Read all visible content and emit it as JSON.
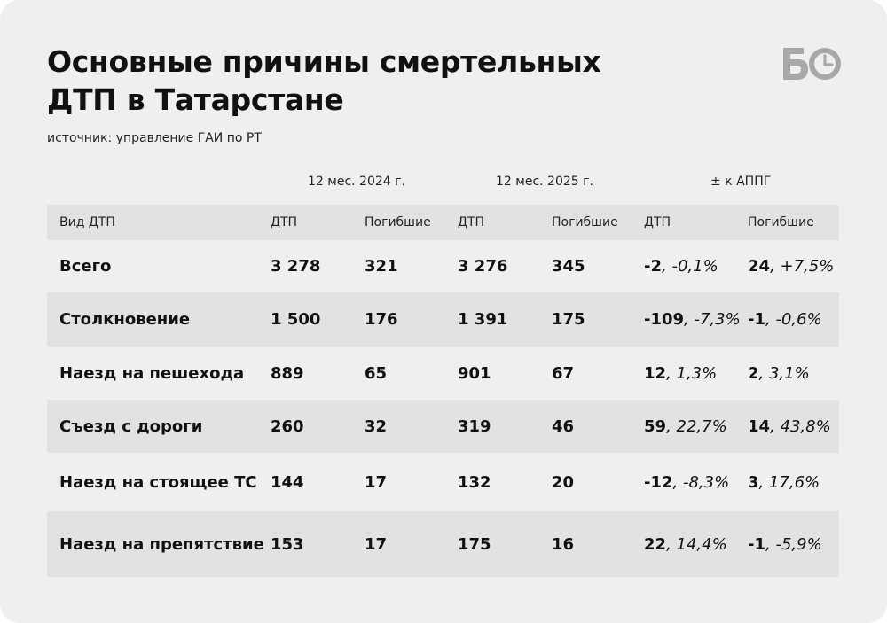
{
  "title_line1": "Основные причины смертельных",
  "title_line2": "ДТП в Татарстане",
  "source": "источник: управление ГАИ по РТ",
  "logo": "БО",
  "periods": {
    "p2024": "12 мес. 2024 г.",
    "p2025": "12 мес. 2025 г.",
    "appg": "± к АППГ"
  },
  "columns": [
    "Вид ДТП",
    "ДТП",
    "Погибшие",
    "ДТП",
    "Погибшие",
    "ДТП",
    "Погибшие"
  ],
  "rows": [
    {
      "type": "Всего",
      "dtp2024": "3 278",
      "dead2024": "321",
      "dtp2025": "3 276",
      "dead2025": "345",
      "dtp_diff": "-2",
      "dtp_pct": ", -0,1%",
      "dead_diff": "24",
      "dead_pct": ", +7,5%"
    },
    {
      "type": "Столкновение",
      "dtp2024": "1 500",
      "dead2024": "176",
      "dtp2025": "1 391",
      "dead2025": "175",
      "dtp_diff": "-109",
      "dtp_pct": ", -7,3%",
      "dead_diff": "-1",
      "dead_pct": ", -0,6%"
    },
    {
      "type": "Наезд на пешехода",
      "dtp2024": "889",
      "dead2024": "65",
      "dtp2025": "901",
      "dead2025": "67",
      "dtp_diff": "12",
      "dtp_pct": ", 1,3%",
      "dead_diff": "2",
      "dead_pct": ", 3,1%"
    },
    {
      "type": "Съезд с дороги",
      "dtp2024": "260",
      "dead2024": "32",
      "dtp2025": "319",
      "dead2025": "46",
      "dtp_diff": "59",
      "dtp_pct": ", 22,7%",
      "dead_diff": "14",
      "dead_pct": ", 43,8%"
    },
    {
      "type": "Наезд на стоящее ТС",
      "dtp2024": "144",
      "dead2024": "17",
      "dtp2025": "132",
      "dead2025": "20",
      "dtp_diff": "-12",
      "dtp_pct": ", -8,3%",
      "dead_diff": "3",
      "dead_pct": ", 17,6%"
    },
    {
      "type": "Наезд\nна препятствие",
      "dtp2024": "153",
      "dead2024": "17",
      "dtp2025": "175",
      "dead2025": "16",
      "dtp_diff": "22",
      "dtp_pct": ", 14,4%",
      "dead_diff": "-1",
      "dead_pct": ", -5,9%"
    }
  ]
}
